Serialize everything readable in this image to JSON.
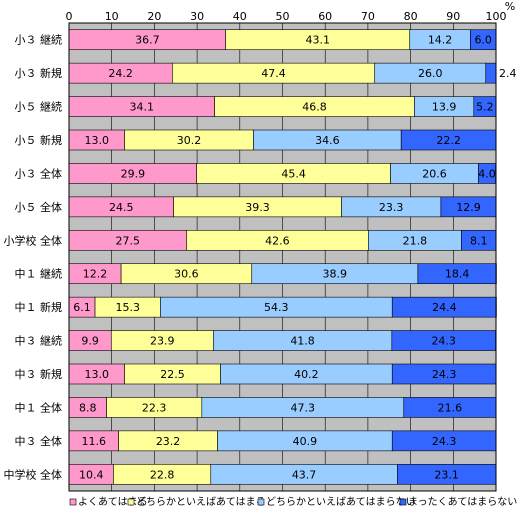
{
  "chart_data": {
    "type": "bar",
    "stacked": true,
    "orientation": "horizontal",
    "unit": "%",
    "xlim": [
      0,
      100
    ],
    "x_ticks": [
      0,
      10,
      20,
      30,
      40,
      50,
      60,
      70,
      80,
      90,
      100
    ],
    "grid": true,
    "legend_position": "bottom",
    "categories": [
      "小３ 継続",
      "小３ 新規",
      "小５ 継続",
      "小５ 新規",
      "小３ 全体",
      "小５ 全体",
      "小学校 全体",
      "中１ 継続",
      "中１ 新規",
      "中３ 継続",
      "中３ 新規",
      "中１ 全体",
      "中３ 全体",
      "中学校 全体"
    ],
    "series": [
      {
        "name": "よくあてはまる",
        "color": "#ff99cc",
        "values": [
          36.7,
          24.2,
          34.1,
          13.0,
          29.9,
          24.5,
          27.5,
          12.2,
          6.1,
          9.9,
          13.0,
          8.8,
          11.6,
          10.4
        ]
      },
      {
        "name": "どちらかといえばあてはまる",
        "color": "#ffff99",
        "values": [
          43.1,
          47.4,
          46.8,
          30.2,
          45.4,
          39.3,
          42.6,
          30.6,
          15.3,
          23.9,
          22.5,
          22.3,
          23.2,
          22.8
        ]
      },
      {
        "name": "どちらかといえばあてはまらない",
        "color": "#99ccff",
        "values": [
          14.2,
          26.0,
          13.9,
          34.6,
          20.6,
          23.3,
          21.8,
          38.9,
          54.3,
          41.8,
          40.2,
          47.3,
          40.9,
          43.7
        ]
      },
      {
        "name": "まったくあてはまらない",
        "color": "#3366ff",
        "values": [
          6.0,
          2.4,
          5.2,
          22.2,
          4.0,
          12.9,
          8.1,
          18.4,
          24.4,
          24.3,
          24.3,
          21.6,
          24.3,
          23.1
        ]
      }
    ]
  }
}
